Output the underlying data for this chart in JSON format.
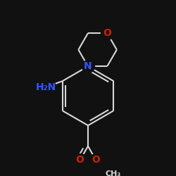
{
  "bg": "#111111",
  "bc": "#d8d8d8",
  "NC": "#3355ff",
  "OC": "#cc2200",
  "lw": 1.5,
  "fs": 10,
  "fs_small": 8,
  "xlim": [
    -0.5,
    0.5
  ],
  "ylim": [
    -0.52,
    0.52
  ]
}
